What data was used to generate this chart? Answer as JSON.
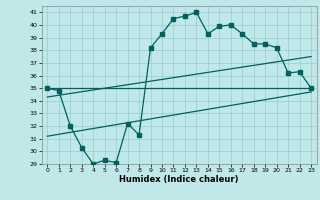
{
  "xlabel": "Humidex (Indice chaleur)",
  "bg_color": "#c0e8e8",
  "grid_color": "#99cccc",
  "line_color": "#006060",
  "xlim": [
    -0.5,
    23.5
  ],
  "ylim": [
    29,
    41.5
  ],
  "xticks": [
    0,
    1,
    2,
    3,
    4,
    5,
    6,
    7,
    8,
    9,
    10,
    11,
    12,
    13,
    14,
    15,
    16,
    17,
    18,
    19,
    20,
    21,
    22,
    23
  ],
  "yticks": [
    29,
    30,
    31,
    32,
    33,
    34,
    35,
    36,
    37,
    38,
    39,
    40,
    41
  ],
  "series1_x": [
    0,
    1,
    2,
    3,
    4,
    5,
    6,
    7,
    8,
    9,
    10,
    11,
    12,
    13,
    14,
    15,
    16,
    17,
    18,
    19,
    20,
    21,
    22,
    23
  ],
  "series1_y": [
    35.0,
    34.8,
    32.0,
    30.3,
    29.0,
    29.3,
    29.1,
    32.2,
    31.3,
    38.2,
    39.3,
    40.5,
    40.7,
    41.0,
    39.3,
    39.9,
    40.0,
    39.3,
    38.5,
    38.5,
    38.2,
    36.2,
    36.3,
    35.0
  ],
  "line2_x": [
    0,
    23
  ],
  "line2_y": [
    35.0,
    35.0
  ],
  "line3_x": [
    0,
    23
  ],
  "line3_y": [
    34.3,
    37.5
  ],
  "line4_x": [
    0,
    23
  ],
  "line4_y": [
    31.2,
    34.7
  ]
}
